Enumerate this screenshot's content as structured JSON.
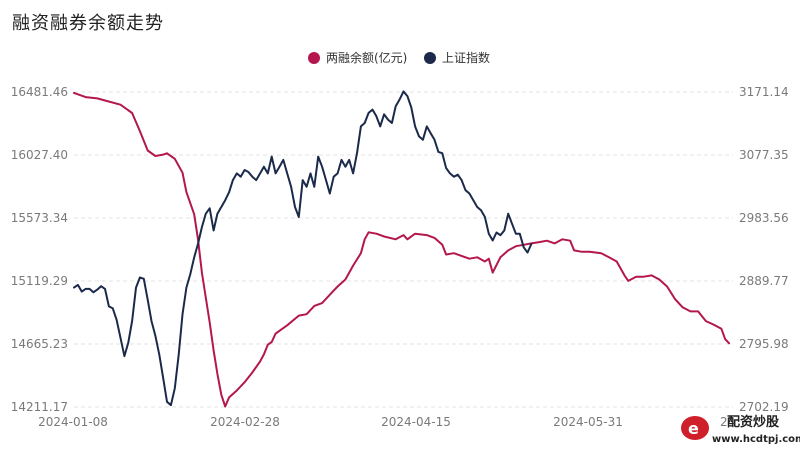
{
  "chart_data": {
    "type": "line",
    "title": "融资融券余额走势",
    "x_ticks": [
      "2024-01-08",
      "2024-02-28",
      "2024-04-15",
      "2024-05-31",
      "24"
    ],
    "left_axis": {
      "ticks": [
        "16481.46",
        "16027.40",
        "15573.34",
        "15119.29",
        "14665.23",
        "14211.17"
      ],
      "range": [
        14211.17,
        16481.46
      ]
    },
    "right_axis": {
      "ticks": [
        "3171.14",
        "3077.35",
        "2983.56",
        "2889.77",
        "2795.98",
        "2702.19"
      ],
      "range": [
        2702.19,
        3171.14
      ]
    },
    "grid": true,
    "legend_position": "top-center",
    "series": [
      {
        "name": "两融余额(亿元)",
        "axis": "left",
        "color": "#b3174e",
        "points": [
          [
            0,
            16475
          ],
          [
            3,
            16445
          ],
          [
            6,
            16435
          ],
          [
            8,
            16420
          ],
          [
            12,
            16390
          ],
          [
            15,
            16330
          ],
          [
            17,
            16200
          ],
          [
            19,
            16060
          ],
          [
            21,
            16020
          ],
          [
            23,
            16030
          ],
          [
            24,
            16040
          ],
          [
            26,
            16000
          ],
          [
            28,
            15900
          ],
          [
            29,
            15760
          ],
          [
            31,
            15600
          ],
          [
            32,
            15420
          ],
          [
            33,
            15180
          ],
          [
            34,
            15000
          ],
          [
            35,
            14820
          ],
          [
            36,
            14620
          ],
          [
            37,
            14450
          ],
          [
            38,
            14300
          ],
          [
            39,
            14215
          ],
          [
            40,
            14280
          ],
          [
            42,
            14330
          ],
          [
            44,
            14390
          ],
          [
            46,
            14460
          ],
          [
            48,
            14540
          ],
          [
            49,
            14590
          ],
          [
            50,
            14660
          ],
          [
            51,
            14680
          ],
          [
            52,
            14740
          ],
          [
            55,
            14800
          ],
          [
            58,
            14870
          ],
          [
            60,
            14880
          ],
          [
            62,
            14940
          ],
          [
            64,
            14960
          ],
          [
            67,
            15050
          ],
          [
            68,
            15080
          ],
          [
            70,
            15130
          ],
          [
            72,
            15230
          ],
          [
            74,
            15320
          ],
          [
            75,
            15420
          ],
          [
            76,
            15470
          ],
          [
            78,
            15460
          ],
          [
            80,
            15440
          ],
          [
            83,
            15420
          ],
          [
            85,
            15450
          ],
          [
            86,
            15420
          ],
          [
            88,
            15460
          ],
          [
            91,
            15450
          ],
          [
            93,
            15430
          ],
          [
            95,
            15380
          ],
          [
            96,
            15310
          ],
          [
            98,
            15320
          ],
          [
            100,
            15300
          ],
          [
            102,
            15280
          ],
          [
            104,
            15290
          ],
          [
            106,
            15260
          ],
          [
            107,
            15280
          ],
          [
            108,
            15180
          ],
          [
            110,
            15290
          ],
          [
            112,
            15340
          ],
          [
            114,
            15370
          ],
          [
            116,
            15380
          ],
          [
            118,
            15390
          ],
          [
            120,
            15400
          ],
          [
            122,
            15410
          ],
          [
            124,
            15390
          ],
          [
            126,
            15420
          ],
          [
            128,
            15410
          ],
          [
            129,
            15340
          ],
          [
            131,
            15330
          ],
          [
            133,
            15330
          ],
          [
            136,
            15320
          ],
          [
            138,
            15290
          ],
          [
            140,
            15260
          ],
          [
            142,
            15160
          ],
          [
            143,
            15120
          ],
          [
            145,
            15150
          ],
          [
            147,
            15150
          ],
          [
            149,
            15160
          ],
          [
            151,
            15130
          ],
          [
            153,
            15080
          ],
          [
            155,
            14990
          ],
          [
            157,
            14930
          ],
          [
            159,
            14900
          ],
          [
            161,
            14900
          ],
          [
            163,
            14830
          ],
          [
            165,
            14805
          ],
          [
            167,
            14775
          ],
          [
            168,
            14700
          ],
          [
            169,
            14670
          ]
        ]
      },
      {
        "name": "上证指数",
        "axis": "right",
        "color": "#1b2a4a",
        "points": [
          [
            0,
            2880
          ],
          [
            1,
            2884
          ],
          [
            2,
            2874
          ],
          [
            3,
            2878
          ],
          [
            4,
            2878
          ],
          [
            5,
            2873
          ],
          [
            6,
            2877
          ],
          [
            7,
            2882
          ],
          [
            8,
            2878
          ],
          [
            9,
            2852
          ],
          [
            10,
            2849
          ],
          [
            11,
            2832
          ],
          [
            12,
            2805
          ],
          [
            13,
            2778
          ],
          [
            14,
            2798
          ],
          [
            15,
            2830
          ],
          [
            16,
            2880
          ],
          [
            17,
            2895
          ],
          [
            18,
            2893
          ],
          [
            19,
            2862
          ],
          [
            20,
            2830
          ],
          [
            21,
            2808
          ],
          [
            22,
            2780
          ],
          [
            23,
            2745
          ],
          [
            24,
            2710
          ],
          [
            25,
            2705
          ],
          [
            26,
            2730
          ],
          [
            27,
            2780
          ],
          [
            28,
            2840
          ],
          [
            29,
            2880
          ],
          [
            30,
            2900
          ],
          [
            31,
            2925
          ],
          [
            32,
            2945
          ],
          [
            33,
            2970
          ],
          [
            34,
            2990
          ],
          [
            35,
            2998
          ],
          [
            36,
            2965
          ],
          [
            37,
            2990
          ],
          [
            38,
            3000
          ],
          [
            39,
            3010
          ],
          [
            40,
            3022
          ],
          [
            41,
            3040
          ],
          [
            42,
            3050
          ],
          [
            43,
            3045
          ],
          [
            44,
            3055
          ],
          [
            45,
            3052
          ],
          [
            46,
            3045
          ],
          [
            47,
            3040
          ],
          [
            48,
            3050
          ],
          [
            49,
            3060
          ],
          [
            50,
            3050
          ],
          [
            51,
            3075
          ],
          [
            52,
            3050
          ],
          [
            53,
            3060
          ],
          [
            54,
            3070
          ],
          [
            55,
            3050
          ],
          [
            56,
            3030
          ],
          [
            57,
            3000
          ],
          [
            58,
            2985
          ],
          [
            59,
            3040
          ],
          [
            60,
            3030
          ],
          [
            61,
            3050
          ],
          [
            62,
            3030
          ],
          [
            63,
            3075
          ],
          [
            64,
            3060
          ],
          [
            65,
            3040
          ],
          [
            66,
            3020
          ],
          [
            67,
            3045
          ],
          [
            68,
            3050
          ],
          [
            69,
            3070
          ],
          [
            70,
            3060
          ],
          [
            71,
            3070
          ],
          [
            72,
            3050
          ],
          [
            73,
            3080
          ],
          [
            74,
            3120
          ],
          [
            75,
            3125
          ],
          [
            76,
            3140
          ],
          [
            77,
            3145
          ],
          [
            78,
            3135
          ],
          [
            79,
            3120
          ],
          [
            80,
            3138
          ],
          [
            81,
            3130
          ],
          [
            82,
            3125
          ],
          [
            83,
            3150
          ],
          [
            84,
            3160
          ],
          [
            85,
            3172
          ],
          [
            86,
            3165
          ],
          [
            87,
            3148
          ],
          [
            88,
            3120
          ],
          [
            89,
            3105
          ],
          [
            90,
            3100
          ],
          [
            91,
            3120
          ],
          [
            92,
            3110
          ],
          [
            93,
            3100
          ],
          [
            94,
            3082
          ],
          [
            95,
            3080
          ],
          [
            96,
            3058
          ],
          [
            97,
            3050
          ],
          [
            98,
            3045
          ],
          [
            99,
            3048
          ],
          [
            100,
            3040
          ],
          [
            101,
            3025
          ],
          [
            102,
            3020
          ],
          [
            103,
            3010
          ],
          [
            104,
            3000
          ],
          [
            105,
            2995
          ],
          [
            106,
            2985
          ],
          [
            107,
            2960
          ],
          [
            108,
            2950
          ],
          [
            109,
            2962
          ],
          [
            110,
            2958
          ],
          [
            111,
            2965
          ],
          [
            112,
            2990
          ],
          [
            113,
            2975
          ],
          [
            114,
            2960
          ],
          [
            115,
            2960
          ],
          [
            116,
            2940
          ],
          [
            117,
            2932
          ],
          [
            118,
            2945
          ]
        ]
      }
    ]
  },
  "watermark": {
    "brand": "配资炒股",
    "url": "www.hcdtpj.com"
  }
}
